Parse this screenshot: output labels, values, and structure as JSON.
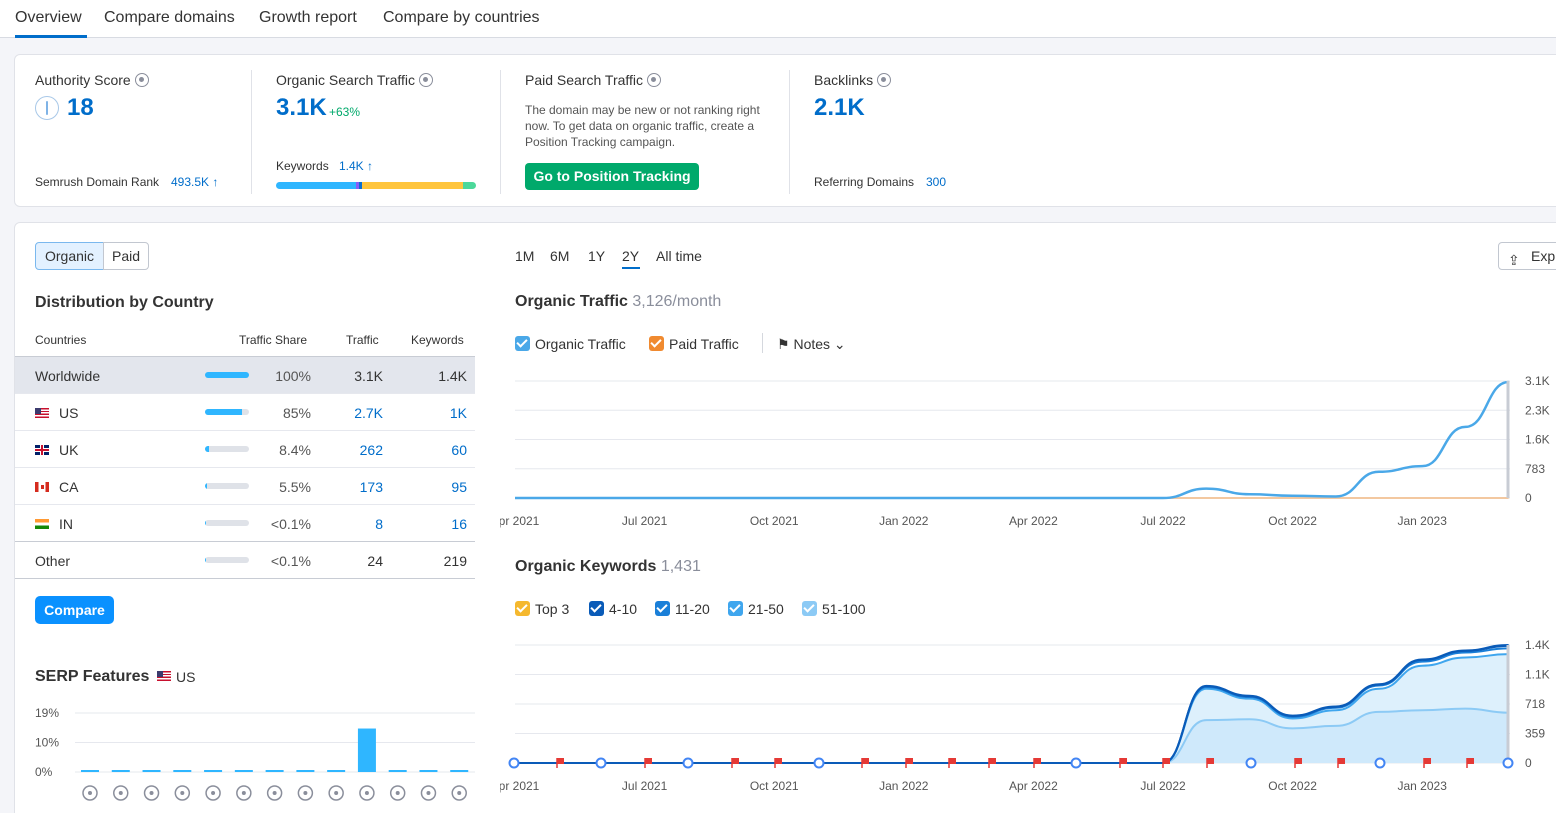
{
  "tabs": [
    "Overview",
    "Compare domains",
    "Growth report",
    "Compare by countries"
  ],
  "metrics": {
    "authority": {
      "title": "Authority Score",
      "value": "18",
      "rank_label": "Semrush Domain Rank",
      "rank_value": "493.5K"
    },
    "organic": {
      "title": "Organic Search Traffic",
      "value": "3.1K",
      "change": "+63%",
      "kw_label": "Keywords",
      "kw_value": "1.4K"
    },
    "paid": {
      "title": "Paid Search Traffic",
      "note": "The domain may be new or not ranking right now. To get data on organic traffic, create a Position Tracking campaign.",
      "button": "Go to Position Tracking"
    },
    "backlinks": {
      "title": "Backlinks",
      "value": "2.1K",
      "ref_label": "Referring Domains",
      "ref_value": "300"
    }
  },
  "toggle": {
    "organic": "Organic",
    "paid": "Paid"
  },
  "distribution": {
    "title": "Distribution by Country",
    "headers": {
      "countries": "Countries",
      "share": "Traffic Share",
      "traffic": "Traffic",
      "keywords": "Keywords"
    },
    "rows": [
      {
        "name": "Worldwide",
        "share": "100%",
        "fill": 1.0,
        "traffic": "3.1K",
        "keywords": "1.4K"
      },
      {
        "name": "US",
        "share": "85%",
        "fill": 0.85,
        "traffic": "2.7K",
        "keywords": "1K"
      },
      {
        "name": "UK",
        "share": "8.4%",
        "fill": 0.084,
        "traffic": "262",
        "keywords": "60"
      },
      {
        "name": "CA",
        "share": "5.5%",
        "fill": 0.055,
        "traffic": "173",
        "keywords": "95"
      },
      {
        "name": "IN",
        "share": "<0.1%",
        "fill": 0.01,
        "traffic": "8",
        "keywords": "16"
      },
      {
        "name": "Other",
        "share": "<0.1%",
        "fill": 0.01,
        "traffic": "24",
        "keywords": "219"
      }
    ],
    "compare_button": "Compare"
  },
  "serp": {
    "title": "SERP Features",
    "country": "US",
    "yticks": [
      "19%",
      "10%",
      "0%"
    ],
    "values": [
      0,
      0,
      0,
      0,
      0,
      0,
      0,
      0,
      0,
      14,
      0,
      0,
      0
    ],
    "icons": [
      "graduation-cap-icon",
      "location-pin-icon",
      "document-icon",
      "image-icon",
      "link-icon",
      "star-icon",
      "video-play-icon",
      "video-icon",
      "crown-icon",
      "image-pack-icon",
      "play-circle-icon",
      "review-icon",
      "question-icon"
    ]
  },
  "ranges": [
    "1M",
    "6M",
    "1Y",
    "2Y",
    "All time"
  ],
  "export_label": "Exp",
  "traffic_chart": {
    "title": "Organic Traffic",
    "subtitle": "3,126/month",
    "legend": [
      "Organic Traffic",
      "Paid Traffic"
    ],
    "notes": "Notes",
    "yticks": [
      "3.1K",
      "2.3K",
      "1.6K",
      "783",
      "0"
    ],
    "xticks": [
      "Apr 2021",
      "Jul 2021",
      "Oct 2021",
      "Jan 2022",
      "Apr 2022",
      "Jul 2022",
      "Oct 2022",
      "Jan 2023"
    ]
  },
  "keywords_chart": {
    "title": "Organic Keywords",
    "subtitle": "1,431",
    "legend": [
      "Top 3",
      "4-10",
      "11-20",
      "21-50",
      "51-100"
    ],
    "yticks": [
      "1.4K",
      "1.1K",
      "718",
      "359",
      "0"
    ],
    "xticks": [
      "Apr 2021",
      "Jul 2021",
      "Oct 2021",
      "Jan 2022",
      "Apr 2022",
      "Jul 2022",
      "Oct 2022",
      "Jan 2023"
    ]
  },
  "colors": {
    "accent": "#006dca",
    "green": "#00a96b",
    "organic": "#4aa8e8",
    "paid": "#f08a30"
  },
  "chart_data": [
    {
      "type": "line",
      "title": "Organic Traffic",
      "ylim": [
        0,
        3126
      ],
      "x": [
        "Apr 2021",
        "Jul 2021",
        "Oct 2021",
        "Jan 2022",
        "Apr 2022",
        "Jul 2022",
        "Aug 2022",
        "Sep 2022",
        "Oct 2022",
        "Nov 2022",
        "Dec 2022",
        "Jan 2023",
        "Feb 2023",
        "Mar 2023"
      ],
      "series": [
        {
          "name": "Organic Traffic",
          "values": [
            0,
            0,
            0,
            0,
            0,
            0,
            250,
            100,
            60,
            40,
            700,
            850,
            1900,
            3100
          ]
        },
        {
          "name": "Paid Traffic",
          "values": [
            0,
            0,
            0,
            0,
            0,
            0,
            0,
            0,
            0,
            0,
            0,
            0,
            0,
            0
          ]
        }
      ]
    },
    {
      "type": "area",
      "title": "Organic Keywords",
      "ylim": [
        0,
        1431
      ],
      "x": [
        "Apr 2021",
        "Jul 2021",
        "Oct 2021",
        "Jan 2022",
        "Apr 2022",
        "Jul 2022",
        "Aug 2022",
        "Sep 2022",
        "Oct 2022",
        "Nov 2022",
        "Dec 2022",
        "Jan 2023",
        "Feb 2023",
        "Mar 2023"
      ],
      "series": [
        {
          "name": "51-100",
          "values": [
            0,
            0,
            0,
            0,
            0,
            0,
            520,
            530,
            420,
            450,
            620,
            640,
            660,
            610
          ]
        },
        {
          "name": "21-50",
          "values": [
            0,
            0,
            0,
            0,
            0,
            0,
            900,
            780,
            540,
            640,
            900,
            1180,
            1280,
            1320
          ]
        },
        {
          "name": "11-20",
          "values": [
            0,
            0,
            0,
            0,
            0,
            0,
            920,
            800,
            560,
            670,
            940,
            1230,
            1340,
            1390
          ]
        },
        {
          "name": "4-10",
          "values": [
            0,
            0,
            0,
            0,
            0,
            0,
            930,
            810,
            570,
            680,
            950,
            1250,
            1360,
            1420
          ]
        },
        {
          "name": "Top 3",
          "values": [
            0,
            0,
            0,
            0,
            0,
            0,
            935,
            815,
            575,
            685,
            955,
            1255,
            1365,
            1431
          ]
        }
      ]
    }
  ]
}
